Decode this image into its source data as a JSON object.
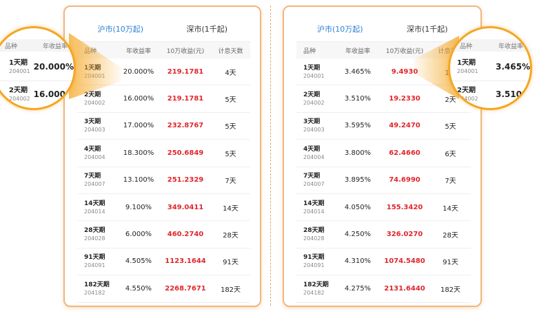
{
  "tabs": {
    "sh": "沪市(10万起)",
    "sz": "深市(1千起)"
  },
  "headers": {
    "name": "品种",
    "rate": "年收益率",
    "income": "10万收益(元)",
    "days": "计息天数"
  },
  "left_rows": [
    {
      "name": "1天期",
      "code": "204001",
      "rate": "20.000%",
      "income": "219.1781",
      "days": "4天"
    },
    {
      "name": "2天期",
      "code": "204002",
      "rate": "16.000%",
      "income": "219.1781",
      "days": "5天"
    },
    {
      "name": "3天期",
      "code": "204003",
      "rate": "17.000%",
      "income": "232.8767",
      "days": "5天"
    },
    {
      "name": "4天期",
      "code": "204004",
      "rate": "18.300%",
      "income": "250.6849",
      "days": "5天"
    },
    {
      "name": "7天期",
      "code": "204007",
      "rate": "13.100%",
      "income": "251.2329",
      "days": "7天"
    },
    {
      "name": "14天期",
      "code": "204014",
      "rate": "9.100%",
      "income": "349.0411",
      "days": "14天"
    },
    {
      "name": "28天期",
      "code": "204028",
      "rate": "6.000%",
      "income": "460.2740",
      "days": "28天"
    },
    {
      "name": "91天期",
      "code": "204091",
      "rate": "4.505%",
      "income": "1123.1644",
      "days": "91天"
    },
    {
      "name": "182天期",
      "code": "204182",
      "rate": "4.550%",
      "income": "2268.7671",
      "days": "182天"
    }
  ],
  "right_rows": [
    {
      "name": "1天期",
      "code": "204001",
      "rate": "3.465%",
      "income": "9.4930",
      "days": "1天"
    },
    {
      "name": "2天期",
      "code": "204002",
      "rate": "3.510%",
      "income": "19.2330",
      "days": "2天"
    },
    {
      "name": "3天期",
      "code": "204003",
      "rate": "3.595%",
      "income": "49.2470",
      "days": "5天"
    },
    {
      "name": "4天期",
      "code": "204004",
      "rate": "3.800%",
      "income": "62.4660",
      "days": "6天"
    },
    {
      "name": "7天期",
      "code": "204007",
      "rate": "3.895%",
      "income": "74.6990",
      "days": "7天"
    },
    {
      "name": "14天期",
      "code": "204014",
      "rate": "4.050%",
      "income": "155.3420",
      "days": "14天"
    },
    {
      "name": "28天期",
      "code": "204028",
      "rate": "4.250%",
      "income": "326.0270",
      "days": "28天"
    },
    {
      "name": "91天期",
      "code": "204091",
      "rate": "4.310%",
      "income": "1074.5480",
      "days": "91天"
    },
    {
      "name": "182天期",
      "code": "204182",
      "rate": "4.275%",
      "income": "2131.6440",
      "days": "182天"
    }
  ],
  "colors": {
    "accent": "#f5a623",
    "tab_active": "#2a7fd4",
    "income": "#e0262d"
  }
}
